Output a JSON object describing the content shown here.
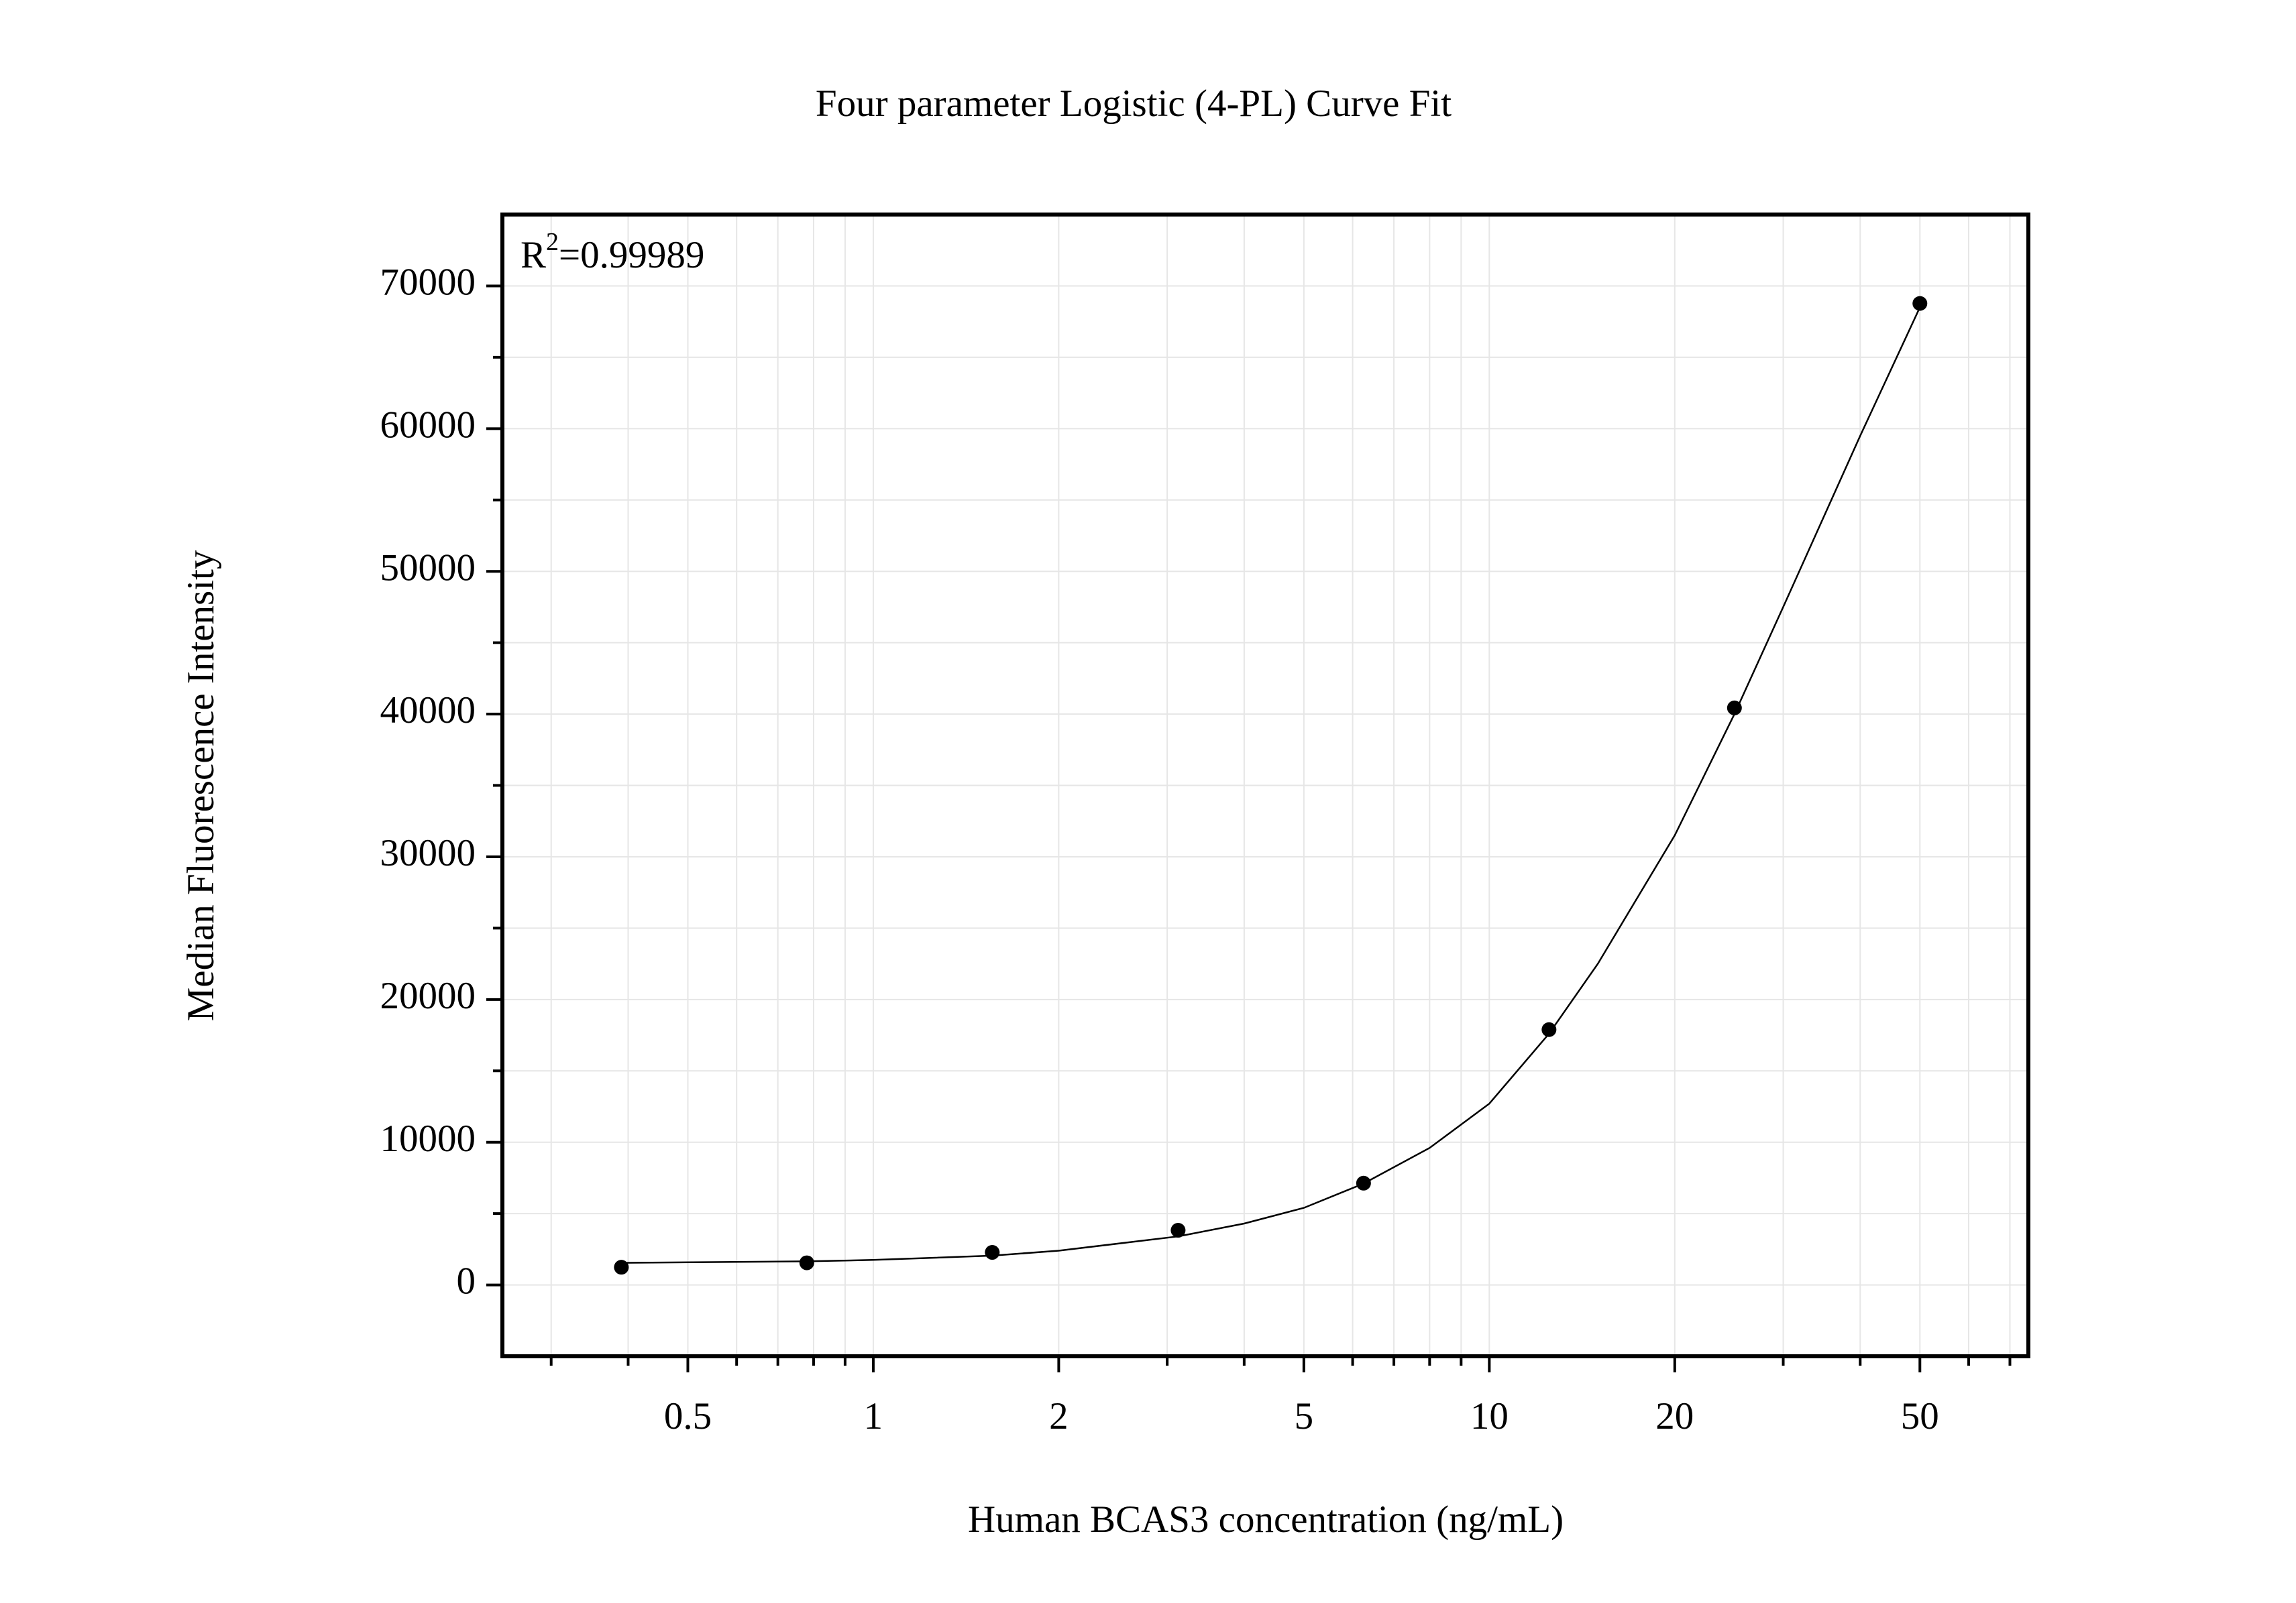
{
  "chart_data": {
    "type": "scatter",
    "title": "Four parameter Logistic (4-PL) Curve Fit",
    "x_label": "Human BCAS3 concentration (ng/mL)",
    "y_label": "Median Fluorescence Intensity",
    "annotation": [
      "R",
      "2",
      "=0.99989"
    ],
    "x": [
      0.39,
      0.78,
      1.56,
      3.125,
      6.25,
      12.5,
      25,
      50
    ],
    "values": [
      1240,
      1550,
      2280,
      3830,
      7130,
      17890,
      40430,
      68770
    ],
    "color": "#000000",
    "fit": {
      "x": [
        0.39,
        0.78,
        1,
        1.56,
        2,
        3.125,
        4,
        5,
        6.25,
        8,
        10,
        12.5,
        15,
        20,
        25,
        30,
        40,
        50
      ],
      "values": [
        1550,
        1650,
        1750,
        2050,
        2400,
        3400,
        4300,
        5400,
        7100,
        9600,
        12700,
        17600,
        22500,
        31500,
        40000,
        47500,
        59500,
        68500
      ],
      "color": "#000000"
    },
    "xscale": "log",
    "xlim": [
      0.25,
      75
    ],
    "xticks": [
      0.5,
      1,
      2,
      5,
      10,
      20,
      50
    ],
    "xminorticks": [
      0.3,
      0.4,
      0.6,
      0.7,
      0.8,
      0.9,
      3,
      4,
      6,
      7,
      8,
      9,
      30,
      40,
      60,
      70
    ],
    "ylim": [
      -5000,
      75000
    ],
    "yticks": [
      0,
      10000,
      20000,
      30000,
      40000,
      50000,
      60000,
      70000
    ],
    "yminorticks": [
      5000,
      15000,
      25000,
      35000,
      45000,
      55000,
      65000
    ],
    "grid": true
  }
}
